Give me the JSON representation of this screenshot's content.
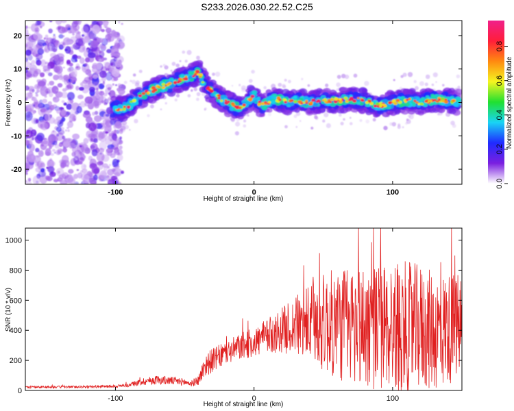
{
  "title": "S233.2026.030.22.52.C25",
  "chart_data": [
    {
      "type": "heatmap",
      "xlabel": "Height of straight line (km)",
      "ylabel": "Frequency (Hz)",
      "xlim": [
        -165,
        150
      ],
      "ylim": [
        -24.5,
        24.5
      ],
      "xticks": [
        -100,
        0,
        100
      ],
      "yticks": [
        -20,
        -10,
        0,
        10,
        20
      ],
      "colorbar": {
        "label": "Normalized spectral amplitude",
        "range": [
          0.0,
          0.95
        ],
        "ticks": [
          "0.0",
          "0.2",
          "0.4",
          "0.6",
          "0.8"
        ],
        "tick_values": [
          0.0,
          0.2,
          0.4,
          0.6,
          0.8
        ],
        "colors": [
          "#ffffff",
          "#7a1fe0",
          "#1f2bff",
          "#19d4f5",
          "#20e030",
          "#f5f520",
          "#ff8a10",
          "#ff1e3a",
          "#f0208a"
        ]
      },
      "ridge_x": [
        -130,
        -100,
        -92,
        -85,
        -75,
        -65,
        -55,
        -45,
        -40,
        -35,
        -30,
        -25,
        -20,
        -15,
        -10,
        -5,
        0,
        5,
        10,
        15,
        20,
        25,
        30,
        40,
        50,
        60,
        70,
        80,
        90,
        100,
        110,
        120,
        130,
        140,
        148
      ],
      "ridge_y": [
        -2,
        -2,
        -1.5,
        1,
        3.5,
        5,
        6.5,
        8,
        9,
        5,
        3,
        1.5,
        0,
        -1,
        -2,
        0.5,
        2,
        -1,
        0,
        1,
        0.5,
        0,
        0.5,
        0,
        0.5,
        0.5,
        1,
        0.5,
        -1,
        0,
        0.5,
        0,
        1,
        0.5,
        0
      ]
    },
    {
      "type": "line",
      "xlabel": "Height of straight line (km)",
      "ylabel": "SNR (10 * v/v)",
      "xlim": [
        -165,
        150
      ],
      "ylim": [
        0,
        1080
      ],
      "xticks": [
        -100,
        0,
        100
      ],
      "yticks": [
        0,
        200,
        400,
        600,
        800,
        1000
      ],
      "color": "#e02020",
      "envelope_x": [
        -165,
        -120,
        -100,
        -90,
        -80,
        -70,
        -60,
        -50,
        -45,
        -40,
        -35,
        -30,
        -20,
        -10,
        0,
        10,
        20,
        30,
        40,
        50,
        60,
        70,
        80,
        90,
        100,
        110,
        120,
        130,
        140,
        150
      ],
      "envelope_mean": [
        22,
        24,
        28,
        35,
        60,
        70,
        65,
        55,
        45,
        70,
        170,
        200,
        250,
        290,
        320,
        360,
        400,
        430,
        440,
        450,
        440,
        430,
        430,
        420,
        430,
        410,
        420,
        390,
        410,
        430
      ],
      "envelope_amp": [
        8,
        8,
        10,
        12,
        25,
        30,
        28,
        25,
        20,
        35,
        80,
        80,
        80,
        90,
        100,
        120,
        150,
        200,
        260,
        330,
        380,
        400,
        420,
        430,
        440,
        450,
        420,
        400,
        380,
        350
      ]
    }
  ]
}
